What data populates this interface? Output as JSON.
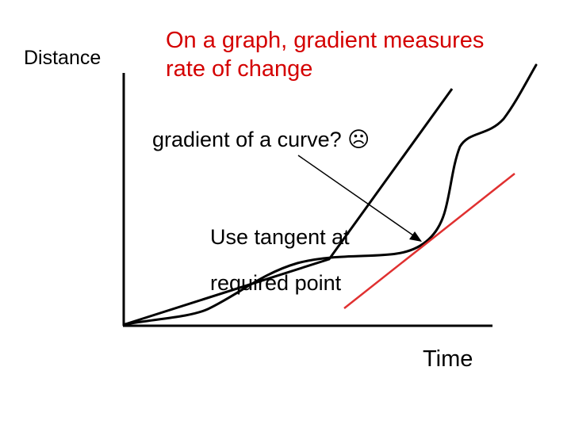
{
  "title": {
    "line1": "On a graph, gradient measures",
    "line2": "rate of change",
    "color": "#d40000"
  },
  "y_axis_label": "Distance",
  "x_axis_label": "Time",
  "question": "gradient of a curve? ☹",
  "answer": {
    "line1": "Use tangent at",
    "line2": "required point"
  },
  "colors": {
    "ink": "#000000",
    "tangent": "#e03030"
  }
}
